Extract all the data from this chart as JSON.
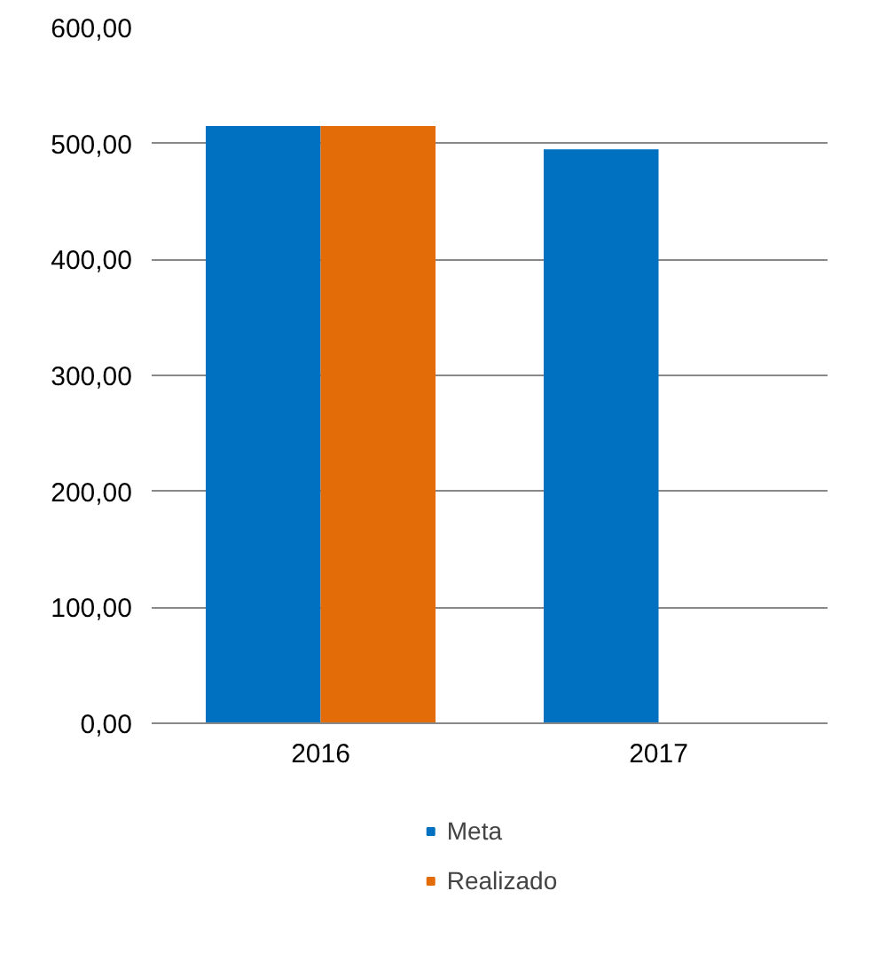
{
  "chart_data": {
    "type": "bar",
    "categories": [
      "2016",
      "2017"
    ],
    "series": [
      {
        "name": "Meta",
        "color": "#0070c0",
        "values": [
          515,
          495
        ]
      },
      {
        "name": "Realizado",
        "color": "#e36c09",
        "values": [
          515,
          null
        ]
      }
    ],
    "ylim": [
      0,
      600
    ],
    "yticks": [
      {
        "value": 0,
        "label": "0,00"
      },
      {
        "value": 100,
        "label": "100,00"
      },
      {
        "value": 200,
        "label": "200,00"
      },
      {
        "value": 300,
        "label": "300,00"
      },
      {
        "value": 400,
        "label": "400,00"
      },
      {
        "value": 500,
        "label": "500,00"
      },
      {
        "value": 600,
        "label": "600,00"
      }
    ],
    "grid": "y",
    "legend": "bottom"
  }
}
